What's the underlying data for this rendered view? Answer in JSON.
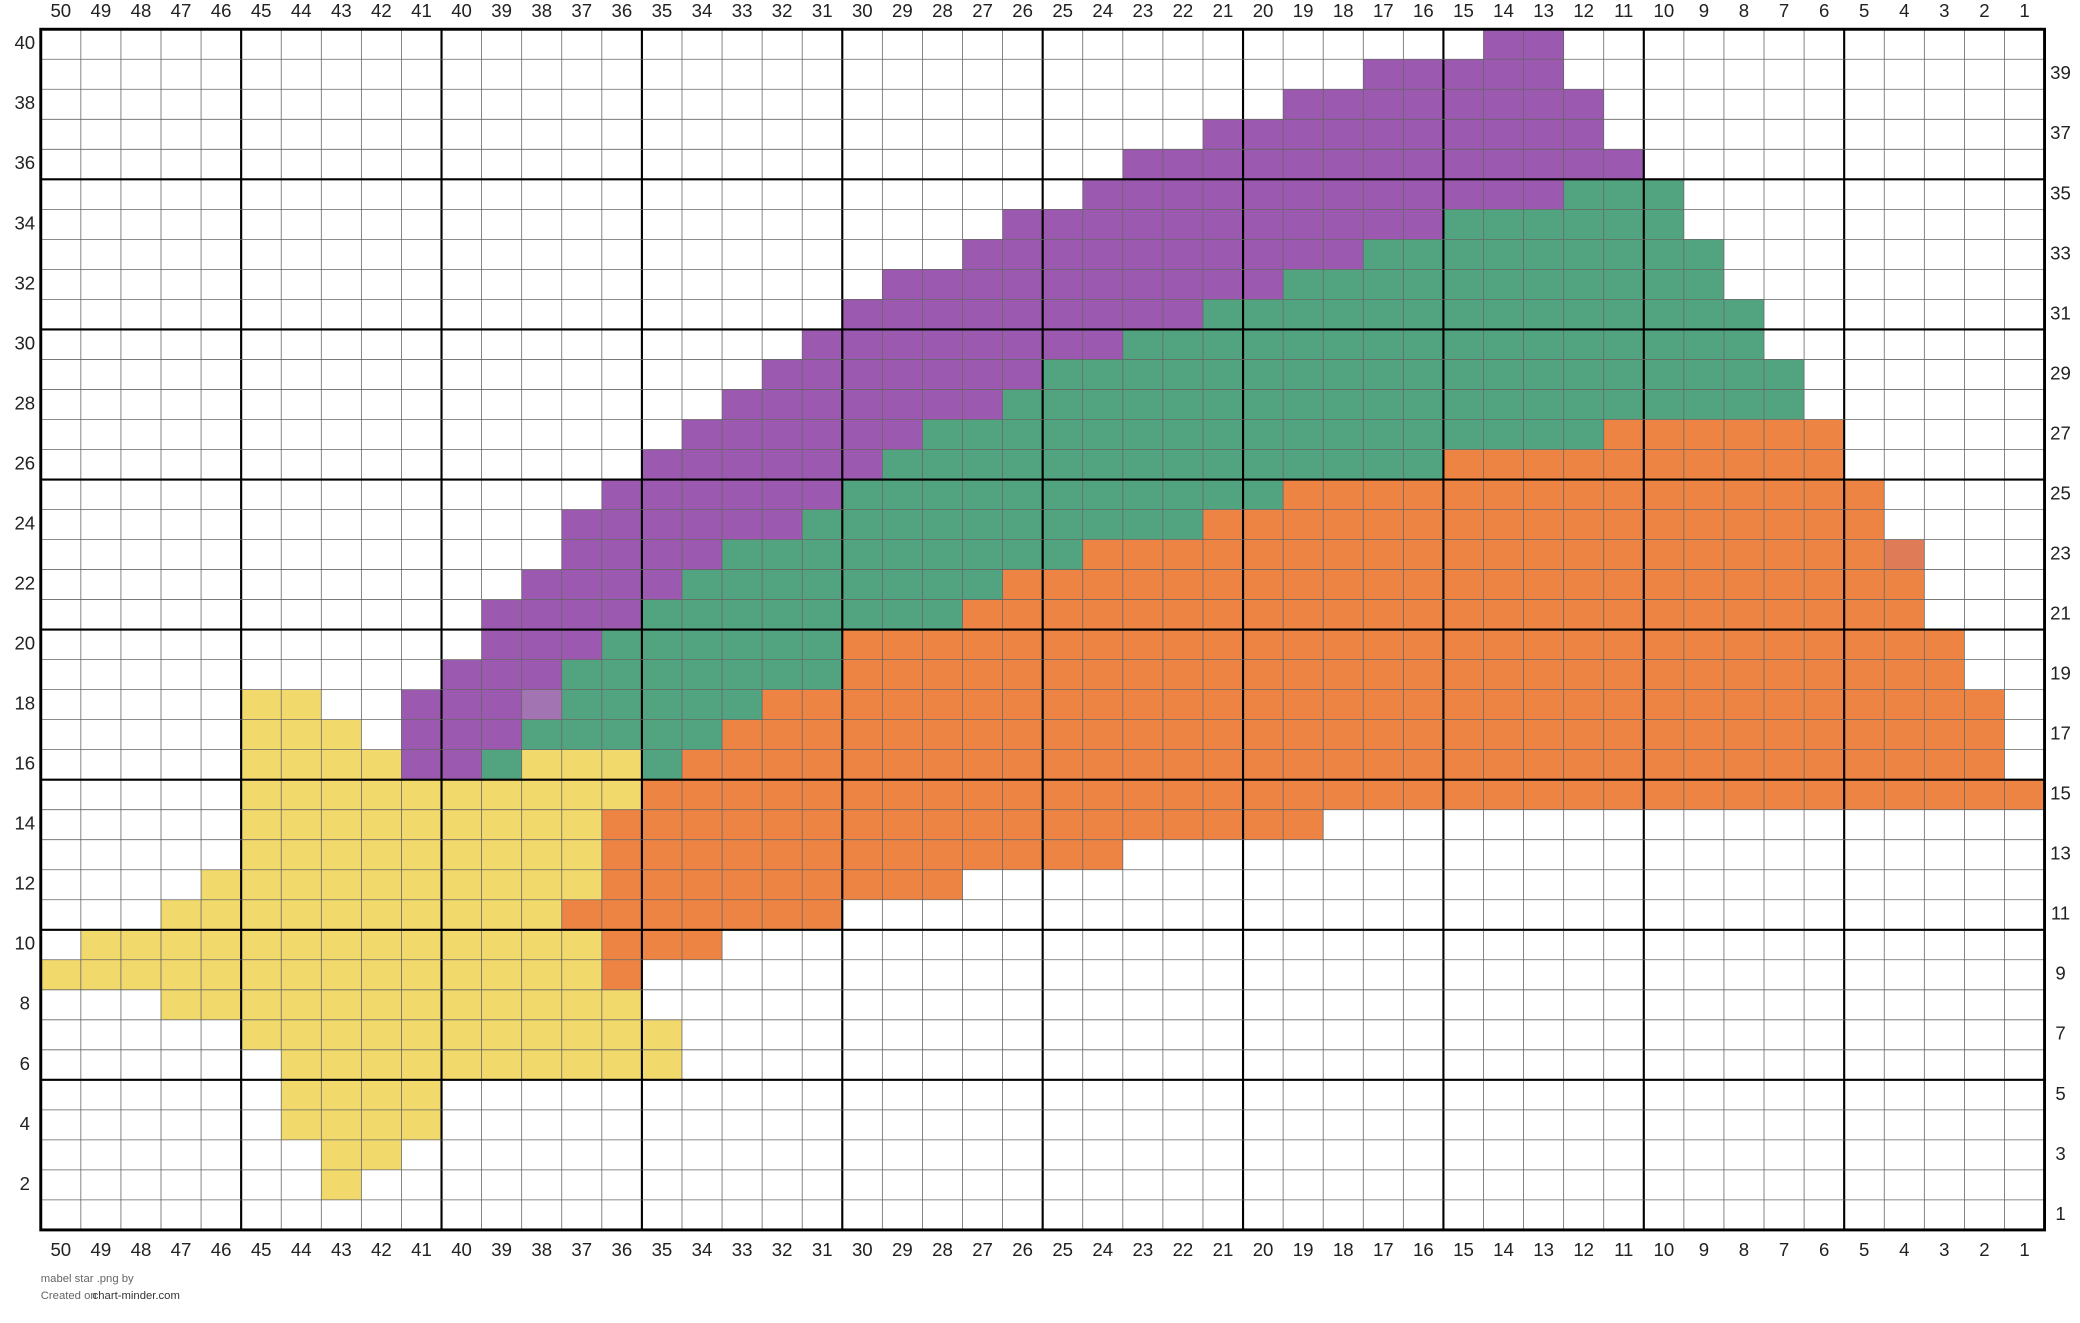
{
  "columns": [
    50,
    49,
    48,
    47,
    46,
    45,
    44,
    43,
    42,
    41,
    40,
    39,
    38,
    37,
    36,
    35,
    34,
    33,
    32,
    31,
    30,
    29,
    28,
    27,
    26,
    25,
    24,
    23,
    22,
    21,
    20,
    19,
    18,
    17,
    16,
    15,
    14,
    13,
    12,
    11,
    10,
    9,
    8,
    7,
    6,
    5,
    4,
    3,
    2,
    1
  ],
  "row_labels_left": [
    40,
    38,
    36,
    34,
    32,
    30,
    28,
    26,
    24,
    22,
    20,
    18,
    16,
    14,
    12,
    10,
    8,
    6,
    4,
    2
  ],
  "row_labels_right": [
    39,
    37,
    35,
    33,
    31,
    29,
    27,
    25,
    23,
    21,
    19,
    17,
    15,
    13,
    11,
    9,
    7,
    5,
    3,
    1
  ],
  "palette": {
    "P": "#9b59b0",
    "Q": "#a274b2",
    "G": "#52a480",
    "O": "#ed8444",
    "R": "#e07b58",
    "Y": "#f2d96b"
  },
  "stitches": [
    {
      "runs": [
        [
          "P",
          14,
          13
        ]
      ]
    },
    {
      "runs": [
        [
          "P",
          17,
          13
        ]
      ]
    },
    {
      "runs": [
        [
          "P",
          19,
          12
        ]
      ]
    },
    {
      "runs": [
        [
          "P",
          21,
          12
        ]
      ]
    },
    {
      "runs": [
        [
          "P",
          23,
          11
        ]
      ]
    },
    {
      "runs": [
        [
          "P",
          24,
          13
        ],
        [
          "G",
          12,
          10
        ]
      ]
    },
    {
      "runs": [
        [
          "P",
          26,
          16
        ],
        [
          "G",
          15,
          10
        ]
      ]
    },
    {
      "runs": [
        [
          "P",
          27,
          18
        ],
        [
          "G",
          17,
          9
        ]
      ]
    },
    {
      "runs": [
        [
          "P",
          29,
          20
        ],
        [
          "G",
          19,
          9
        ]
      ]
    },
    {
      "runs": [
        [
          "P",
          30,
          22
        ],
        [
          "G",
          21,
          8
        ]
      ]
    },
    {
      "runs": [
        [
          "P",
          31,
          24
        ],
        [
          "G",
          23,
          8
        ]
      ]
    },
    {
      "runs": [
        [
          "P",
          32,
          26
        ],
        [
          "G",
          25,
          7
        ]
      ]
    },
    {
      "runs": [
        [
          "P",
          33,
          27
        ],
        [
          "G",
          26,
          7
        ]
      ]
    },
    {
      "runs": [
        [
          "P",
          34,
          29
        ],
        [
          "G",
          28,
          12
        ],
        [
          "O",
          11,
          6
        ]
      ]
    },
    {
      "runs": [
        [
          "P",
          35,
          30
        ],
        [
          "G",
          29,
          16
        ],
        [
          "O",
          15,
          6
        ]
      ]
    },
    {
      "runs": [
        [
          "P",
          36,
          31
        ],
        [
          "G",
          30,
          20
        ],
        [
          "O",
          19,
          5
        ]
      ]
    },
    {
      "runs": [
        [
          "P",
          37,
          32
        ],
        [
          "G",
          31,
          22
        ],
        [
          "O",
          21,
          5
        ]
      ]
    },
    {
      "runs": [
        [
          "P",
          37,
          34
        ],
        [
          "G",
          33,
          25
        ],
        [
          "O",
          24,
          5
        ],
        [
          "R",
          4,
          4
        ]
      ]
    },
    {
      "runs": [
        [
          "P",
          38,
          35
        ],
        [
          "G",
          34,
          27
        ],
        [
          "O",
          26,
          4
        ]
      ]
    },
    {
      "runs": [
        [
          "P",
          39,
          36
        ],
        [
          "G",
          35,
          28
        ],
        [
          "O",
          27,
          4
        ]
      ]
    },
    {
      "runs": [
        [
          "P",
          39,
          37
        ],
        [
          "G",
          36,
          31
        ],
        [
          "O",
          30,
          3
        ]
      ]
    },
    {
      "runs": [
        [
          "P",
          40,
          38
        ],
        [
          "G",
          37,
          31
        ],
        [
          "O",
          30,
          3
        ]
      ]
    },
    {
      "runs": [
        [
          "Y",
          45,
          44
        ],
        [
          "P",
          41,
          39
        ],
        [
          "Q",
          38,
          38
        ],
        [
          "G",
          37,
          33
        ],
        [
          "O",
          32,
          2
        ]
      ]
    },
    {
      "runs": [
        [
          "Y",
          45,
          43
        ],
        [
          "P",
          41,
          39
        ],
        [
          "G",
          38,
          34
        ],
        [
          "O",
          33,
          2
        ]
      ]
    },
    {
      "runs": [
        [
          "Y",
          45,
          42
        ],
        [
          "P",
          41,
          40
        ],
        [
          "G",
          39,
          39
        ],
        [
          "Y",
          38,
          36
        ],
        [
          "G",
          35,
          35
        ],
        [
          "O",
          34,
          2
        ]
      ]
    },
    {
      "runs": [
        [
          "Y",
          45,
          36
        ],
        [
          "O",
          35,
          1
        ]
      ]
    },
    {
      "runs": [
        [
          "Y",
          45,
          37
        ],
        [
          "O",
          36,
          19
        ]
      ]
    },
    {
      "runs": [
        [
          "Y",
          45,
          37
        ],
        [
          "O",
          36,
          24
        ]
      ]
    },
    {
      "runs": [
        [
          "Y",
          46,
          37
        ],
        [
          "O",
          36,
          28
        ]
      ]
    },
    {
      "runs": [
        [
          "Y",
          47,
          38
        ],
        [
          "O",
          37,
          31
        ]
      ]
    },
    {
      "runs": [
        [
          "Y",
          49,
          37
        ],
        [
          "O",
          36,
          34
        ]
      ]
    },
    {
      "runs": [
        [
          "Y",
          50,
          37
        ],
        [
          "O",
          36,
          36
        ]
      ]
    },
    {
      "runs": [
        [
          "Y",
          47,
          36
        ]
      ]
    },
    {
      "runs": [
        [
          "Y",
          45,
          35
        ]
      ]
    },
    {
      "runs": [
        [
          "Y",
          44,
          35
        ]
      ]
    },
    {
      "runs": [
        [
          "Y",
          44,
          41
        ]
      ]
    },
    {
      "runs": [
        [
          "Y",
          44,
          41
        ]
      ]
    },
    {
      "runs": [
        [
          "Y",
          43,
          42
        ]
      ]
    },
    {
      "runs": [
        [
          "Y",
          43,
          43
        ]
      ]
    },
    {
      "runs": []
    }
  ],
  "footer": {
    "title": "mabel star .png by",
    "created": "Created on",
    "site": "chart-minder.com"
  }
}
